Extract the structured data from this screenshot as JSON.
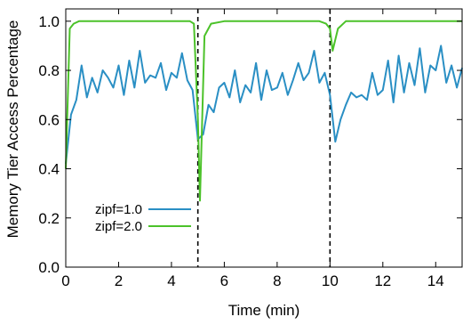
{
  "chart_data": {
    "type": "line",
    "title": "",
    "xlabel": "Time (min)",
    "ylabel": "Memory Tier Access Percentage",
    "xlim": [
      0,
      15
    ],
    "ylim": [
      0,
      1.05
    ],
    "xticks": [
      0,
      2,
      4,
      6,
      8,
      10,
      12,
      14
    ],
    "yticks": [
      0.0,
      0.2,
      0.4,
      0.6,
      0.8,
      1.0
    ],
    "ytick_labels": [
      "0.0",
      "0.2",
      "0.4",
      "0.6",
      "0.8",
      "1.0"
    ],
    "grid": false,
    "legend_position": "lower-left",
    "vlines": [
      5,
      10
    ],
    "series": [
      {
        "name": "zipf=1.0",
        "color": "#2a8fc4",
        "x": [
          0,
          0.2,
          0.4,
          0.6,
          0.8,
          1.0,
          1.2,
          1.4,
          1.6,
          1.8,
          2.0,
          2.2,
          2.4,
          2.6,
          2.8,
          3.0,
          3.2,
          3.4,
          3.6,
          3.8,
          4.0,
          4.2,
          4.4,
          4.6,
          4.8,
          5.0,
          5.2,
          5.4,
          5.6,
          5.8,
          6.0,
          6.2,
          6.4,
          6.6,
          6.8,
          7.0,
          7.2,
          7.4,
          7.6,
          7.8,
          8.0,
          8.2,
          8.4,
          8.6,
          8.8,
          9.0,
          9.2,
          9.4,
          9.6,
          9.8,
          10.0,
          10.2,
          10.4,
          10.6,
          10.8,
          11.0,
          11.2,
          11.4,
          11.6,
          11.8,
          12.0,
          12.2,
          12.4,
          12.6,
          12.8,
          13.0,
          13.2,
          13.4,
          13.6,
          13.8,
          14.0,
          14.2,
          14.4,
          14.6,
          14.8,
          15.0
        ],
        "y": [
          0.42,
          0.62,
          0.68,
          0.82,
          0.69,
          0.77,
          0.71,
          0.8,
          0.77,
          0.73,
          0.82,
          0.7,
          0.84,
          0.73,
          0.88,
          0.75,
          0.78,
          0.77,
          0.83,
          0.72,
          0.79,
          0.77,
          0.87,
          0.76,
          0.72,
          0.52,
          0.54,
          0.66,
          0.63,
          0.73,
          0.75,
          0.69,
          0.8,
          0.67,
          0.74,
          0.71,
          0.83,
          0.68,
          0.8,
          0.72,
          0.73,
          0.79,
          0.7,
          0.76,
          0.83,
          0.76,
          0.79,
          0.88,
          0.75,
          0.79,
          0.7,
          0.51,
          0.6,
          0.66,
          0.71,
          0.69,
          0.7,
          0.68,
          0.79,
          0.7,
          0.72,
          0.84,
          0.67,
          0.86,
          0.71,
          0.83,
          0.74,
          0.89,
          0.71,
          0.82,
          0.8,
          0.9,
          0.75,
          0.82,
          0.73,
          0.81
        ]
      },
      {
        "name": "zipf=2.0",
        "color": "#4cc22a",
        "x": [
          0,
          0.15,
          0.3,
          0.5,
          1,
          2,
          3,
          4,
          4.7,
          4.85,
          5.0,
          5.08,
          5.25,
          5.5,
          6,
          7,
          8,
          9,
          9.6,
          9.85,
          10.0,
          10.1,
          10.3,
          10.6,
          11,
          12,
          13,
          14,
          15
        ],
        "y": [
          0.4,
          0.97,
          0.99,
          1.0,
          1.0,
          1.0,
          1.0,
          1.0,
          1.0,
          0.99,
          0.6,
          0.27,
          0.94,
          0.99,
          1.0,
          1.0,
          1.0,
          1.0,
          1.0,
          0.99,
          0.97,
          0.88,
          0.97,
          1.0,
          1.0,
          1.0,
          1.0,
          1.0,
          1.0
        ]
      }
    ]
  }
}
